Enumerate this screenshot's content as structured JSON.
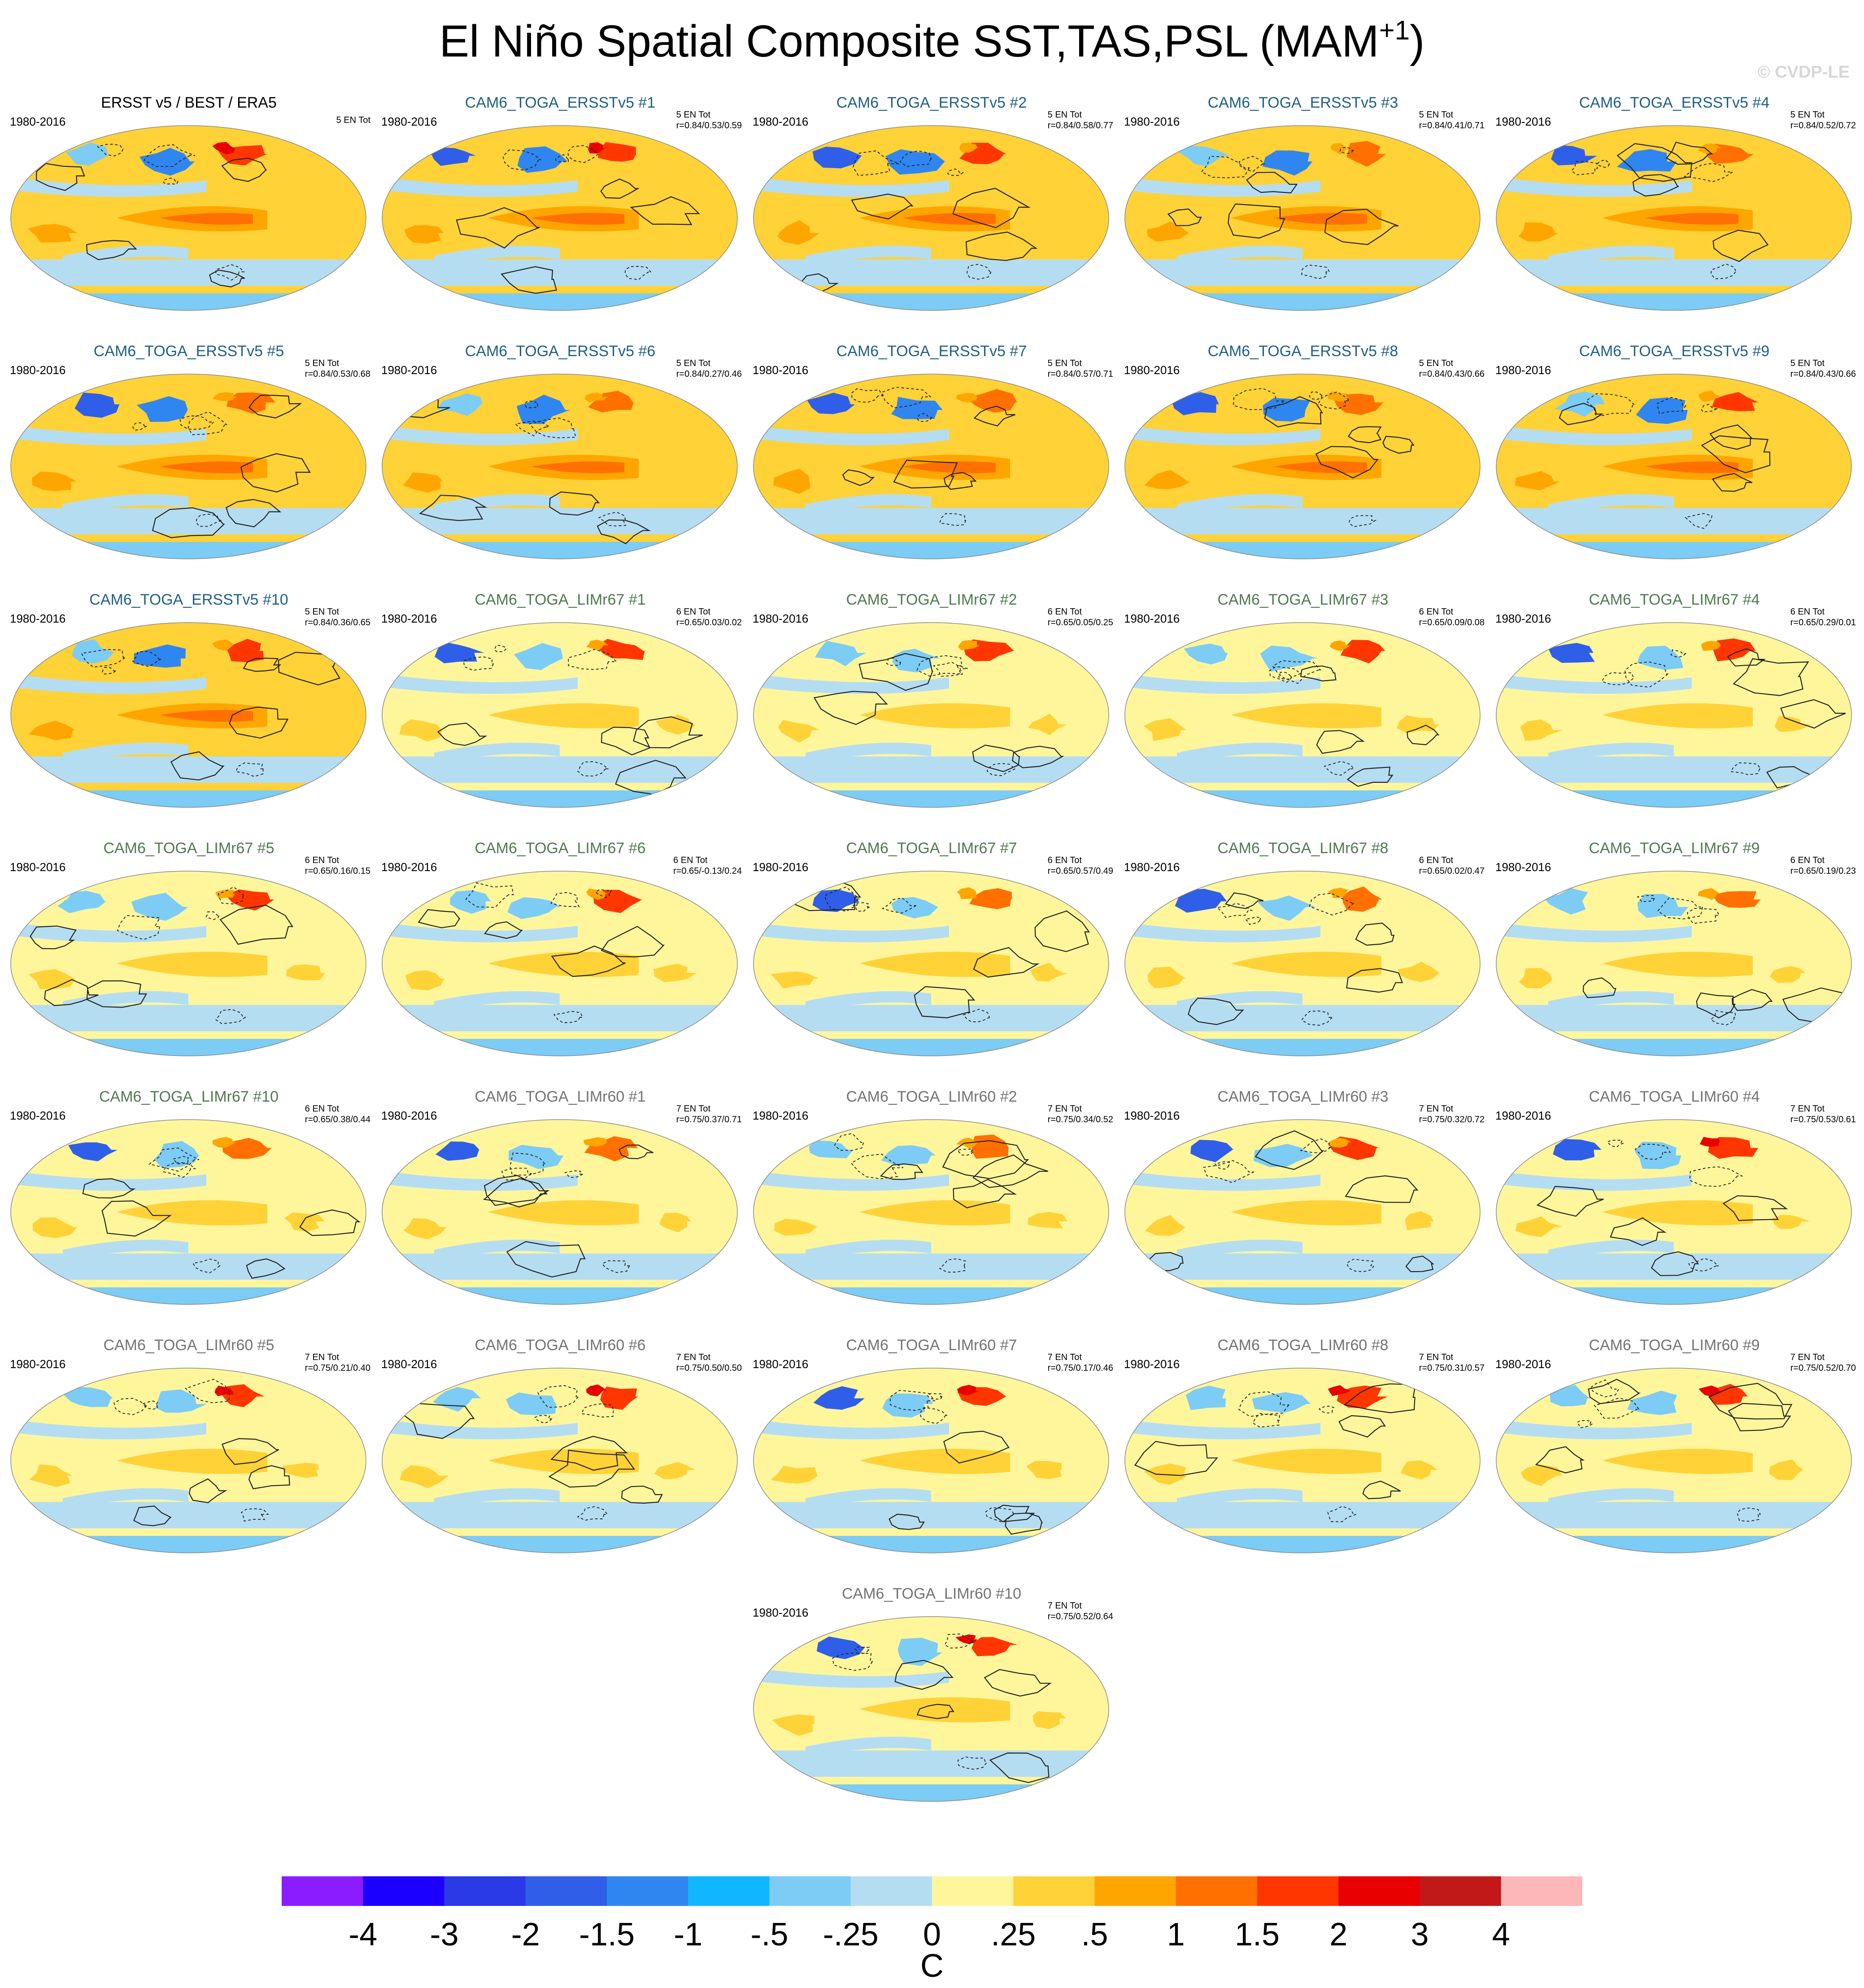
{
  "title": "El Niño Spatial Composite SST,TAS,PSL (MAM",
  "title_sup": "+1",
  "title_end": ")",
  "watermark": "© CVDP-LE",
  "colors": {
    "obs_title": "#000000",
    "ersst_title": "#1f5f86",
    "limr67_title": "#4f7a4f",
    "limr60_title": "#737373"
  },
  "chart_data": {
    "type": "heatmap",
    "projection": "Robinson-like global maps, Pacific-centered",
    "fields": {
      "shading": "SST/TAS anomaly (C)",
      "contours": "PSL anomaly (solid positive, dashed negative)"
    },
    "colorbar": {
      "units": "C",
      "tick_labels": [
        "-4",
        "-3",
        "-2",
        "-1.5",
        "-1",
        "-.5",
        "-.25",
        "0",
        ".25",
        ".5",
        "1",
        "1.5",
        "2",
        "3",
        "4"
      ],
      "colors": [
        "#8a1cff",
        "#1c00ff",
        "#2a3ae6",
        "#2f5fe8",
        "#2f86f0",
        "#10b6ff",
        "#7cccf5",
        "#b5ddf2",
        "#fff69c",
        "#ffd237",
        "#ffa500",
        "#ff7000",
        "#ff3600",
        "#e80000",
        "#c21818",
        "#fdb7b8"
      ]
    },
    "panels": [
      {
        "title": "ERSST v5 / BEST / ERA5",
        "group": "obs",
        "years": "1980-2016",
        "count": "5 EN Tot",
        "corr": ""
      },
      {
        "title": "CAM6_TOGA_ERSSTv5 #1",
        "group": "ersst",
        "years": "1980-2016",
        "count": "5 EN Tot",
        "corr": "r=0.84/0.53/0.59"
      },
      {
        "title": "CAM6_TOGA_ERSSTv5 #2",
        "group": "ersst",
        "years": "1980-2016",
        "count": "5 EN Tot",
        "corr": "r=0.84/0.58/0.77"
      },
      {
        "title": "CAM6_TOGA_ERSSTv5 #3",
        "group": "ersst",
        "years": "1980-2016",
        "count": "5 EN Tot",
        "corr": "r=0.84/0.41/0.71"
      },
      {
        "title": "CAM6_TOGA_ERSSTv5 #4",
        "group": "ersst",
        "years": "1980-2016",
        "count": "5 EN Tot",
        "corr": "r=0.84/0.52/0.72"
      },
      {
        "title": "CAM6_TOGA_ERSSTv5 #5",
        "group": "ersst",
        "years": "1980-2016",
        "count": "5 EN Tot",
        "corr": "r=0.84/0.53/0.68"
      },
      {
        "title": "CAM6_TOGA_ERSSTv5 #6",
        "group": "ersst",
        "years": "1980-2016",
        "count": "5 EN Tot",
        "corr": "r=0.84/0.27/0.46"
      },
      {
        "title": "CAM6_TOGA_ERSSTv5 #7",
        "group": "ersst",
        "years": "1980-2016",
        "count": "5 EN Tot",
        "corr": "r=0.84/0.57/0.71"
      },
      {
        "title": "CAM6_TOGA_ERSSTv5 #8",
        "group": "ersst",
        "years": "1980-2016",
        "count": "5 EN Tot",
        "corr": "r=0.84/0.43/0.66"
      },
      {
        "title": "CAM6_TOGA_ERSSTv5 #9",
        "group": "ersst",
        "years": "1980-2016",
        "count": "5 EN Tot",
        "corr": "r=0.84/0.43/0.66"
      },
      {
        "title": "CAM6_TOGA_ERSSTv5 #10",
        "group": "ersst",
        "years": "1980-2016",
        "count": "5 EN Tot",
        "corr": "r=0.84/0.36/0.65"
      },
      {
        "title": "CAM6_TOGA_LIMr67 #1",
        "group": "limr67",
        "years": "1980-2016",
        "count": "6 EN Tot",
        "corr": "r=0.65/0.03/0.02"
      },
      {
        "title": "CAM6_TOGA_LIMr67 #2",
        "group": "limr67",
        "years": "1980-2016",
        "count": "6 EN Tot",
        "corr": "r=0.65/0.05/0.25"
      },
      {
        "title": "CAM6_TOGA_LIMr67 #3",
        "group": "limr67",
        "years": "1980-2016",
        "count": "6 EN Tot",
        "corr": "r=0.65/0.09/0.08"
      },
      {
        "title": "CAM6_TOGA_LIMr67 #4",
        "group": "limr67",
        "years": "1980-2016",
        "count": "6 EN Tot",
        "corr": "r=0.65/0.29/0.01"
      },
      {
        "title": "CAM6_TOGA_LIMr67 #5",
        "group": "limr67",
        "years": "1980-2016",
        "count": "6 EN Tot",
        "corr": "r=0.65/0.16/0.15"
      },
      {
        "title": "CAM6_TOGA_LIMr67 #6",
        "group": "limr67",
        "years": "1980-2016",
        "count": "6 EN Tot",
        "corr": "r=0.65/-0.13/0.24"
      },
      {
        "title": "CAM6_TOGA_LIMr67 #7",
        "group": "limr67",
        "years": "1980-2016",
        "count": "6 EN Tot",
        "corr": "r=0.65/0.57/0.49"
      },
      {
        "title": "CAM6_TOGA_LIMr67 #8",
        "group": "limr67",
        "years": "1980-2016",
        "count": "6 EN Tot",
        "corr": "r=0.65/0.02/0.47"
      },
      {
        "title": "CAM6_TOGA_LIMr67 #9",
        "group": "limr67",
        "years": "1980-2016",
        "count": "6 EN Tot",
        "corr": "r=0.65/0.19/0.23"
      },
      {
        "title": "CAM6_TOGA_LIMr67 #10",
        "group": "limr67",
        "years": "1980-2016",
        "count": "6 EN Tot",
        "corr": "r=0.65/0.38/0.44"
      },
      {
        "title": "CAM6_TOGA_LIMr60 #1",
        "group": "limr60",
        "years": "1980-2016",
        "count": "7 EN Tot",
        "corr": "r=0.75/0.37/0.71"
      },
      {
        "title": "CAM6_TOGA_LIMr60 #2",
        "group": "limr60",
        "years": "1980-2016",
        "count": "7 EN Tot",
        "corr": "r=0.75/0.34/0.52"
      },
      {
        "title": "CAM6_TOGA_LIMr60 #3",
        "group": "limr60",
        "years": "1980-2016",
        "count": "7 EN Tot",
        "corr": "r=0.75/0.32/0.72"
      },
      {
        "title": "CAM6_TOGA_LIMr60 #4",
        "group": "limr60",
        "years": "1980-2016",
        "count": "7 EN Tot",
        "corr": "r=0.75/0.53/0.61"
      },
      {
        "title": "CAM6_TOGA_LIMr60 #5",
        "group": "limr60",
        "years": "1980-2016",
        "count": "7 EN Tot",
        "corr": "r=0.75/0.21/0.40"
      },
      {
        "title": "CAM6_TOGA_LIMr60 #6",
        "group": "limr60",
        "years": "1980-2016",
        "count": "7 EN Tot",
        "corr": "r=0.75/0.50/0.50"
      },
      {
        "title": "CAM6_TOGA_LIMr60 #7",
        "group": "limr60",
        "years": "1980-2016",
        "count": "7 EN Tot",
        "corr": "r=0.75/0.17/0.46"
      },
      {
        "title": "CAM6_TOGA_LIMr60 #8",
        "group": "limr60",
        "years": "1980-2016",
        "count": "7 EN Tot",
        "corr": "r=0.75/0.31/0.57"
      },
      {
        "title": "CAM6_TOGA_LIMr60 #9",
        "group": "limr60",
        "years": "1980-2016",
        "count": "7 EN Tot",
        "corr": "r=0.75/0.52/0.70"
      },
      {
        "title": "CAM6_TOGA_LIMr60 #10",
        "group": "limr60",
        "years": "1980-2016",
        "count": "7 EN Tot",
        "corr": "r=0.75/0.52/0.64"
      }
    ]
  }
}
